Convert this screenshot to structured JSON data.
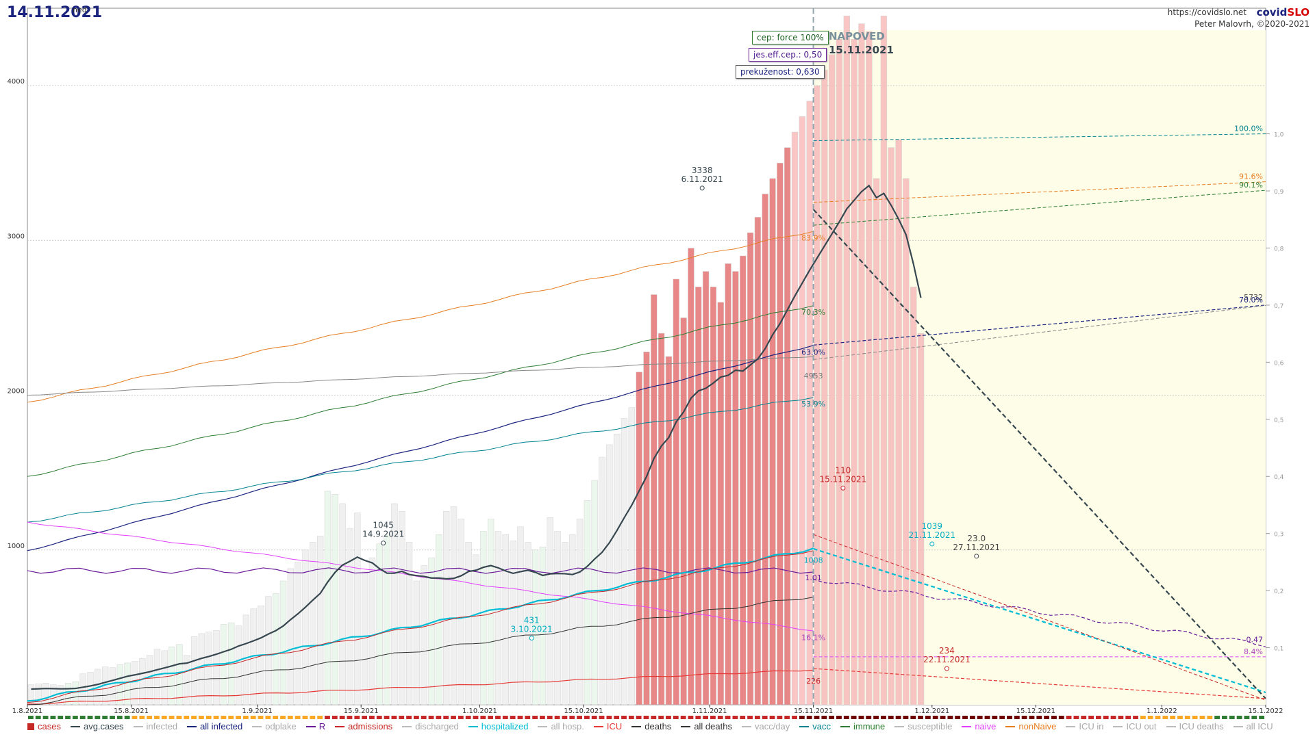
{
  "header": {
    "date": "14.11.2021",
    "day": "ned",
    "url": "https://covidslo.net",
    "brand_a": "covid",
    "brand_b": "SLO",
    "copyright": "Peter Malovrh, ©2020-2021"
  },
  "params": {
    "force": "cep: force 100%",
    "eff": "jes.eff.cep.: 0,50",
    "preku": "prekuženost: 0,630"
  },
  "forecast": {
    "label": "NAPOVED",
    "date": "15.11.2021"
  },
  "chart_data": {
    "type": "bar",
    "x_start": "1.8.2021",
    "x_end": "15.1.2022",
    "forecast_start": "15.11.2021",
    "ylim": [
      0,
      4500
    ],
    "y2lim": [
      0,
      1.0
    ],
    "y_ticks": [
      "1000",
      "2000",
      "3000",
      "4000"
    ],
    "y2_ticks": [
      "0,1",
      "0,2",
      "0,3",
      "0,4",
      "0,5",
      "0,6",
      "0,7",
      "0,8",
      "0,9",
      "1,0"
    ],
    "x_ticks": [
      "1.8.2021",
      "15.8.2021",
      "1.9.2021",
      "15.9.2021",
      "1.10.2021",
      "15.10.2021",
      "1.11.2021",
      "15.11.2021",
      "1.12.2021",
      "15.12.2021",
      "1.1.2022",
      "15.1.2022"
    ],
    "cases": [
      130,
      135,
      140,
      130,
      125,
      140,
      150,
      200,
      210,
      230,
      245,
      240,
      260,
      270,
      280,
      300,
      320,
      360,
      350,
      375,
      390,
      320,
      440,
      460,
      470,
      480,
      520,
      530,
      510,
      580,
      620,
      640,
      700,
      720,
      800,
      880,
      920,
      1000,
      1050,
      1090,
      1380,
      1360,
      1300,
      1140,
      1240,
      860,
      950,
      1040,
      1100,
      1300,
      1250,
      1050,
      800,
      900,
      950,
      1100,
      1250,
      1280,
      1200,
      1050,
      970,
      1120,
      1200,
      1120,
      1100,
      1060,
      1150,
      1050,
      1000,
      1020,
      1210,
      1120,
      1050,
      1100,
      1200,
      1320,
      1450,
      1600,
      1680,
      1750,
      1850,
      1920,
      2150,
      2280,
      2650,
      2400,
      2250,
      2750,
      2500,
      2950,
      2700,
      2800,
      2700,
      2600,
      2850,
      2800,
      2900,
      3050,
      3150,
      3300,
      3400,
      3500,
      3600,
      3700,
      3800,
      3900,
      4000,
      4100,
      4200,
      4300,
      4450,
      4300,
      4400,
      4350,
      3400,
      4450,
      3600,
      3650,
      3400,
      2700,
      2400
    ],
    "cases_pred": [],
    "annotations": [
      {
        "label": "3338",
        "sub": "6.11.2021",
        "color": "#37474f"
      },
      {
        "label": "1045",
        "sub": "14.9.2021",
        "color": "#37474f"
      },
      {
        "label": "431",
        "sub": "3.10.2021",
        "color": "#00acc1"
      },
      {
        "label": "1039",
        "sub": "21.11.2021",
        "color": "#00acc1"
      },
      {
        "label": "23.0",
        "sub": "27.11.2021",
        "color": "#444"
      },
      {
        "label": "110",
        "sub": "15.11.2021",
        "color": "#c62828"
      },
      {
        "label": "234",
        "sub": "22.11.2021",
        "color": "#c62828"
      }
    ],
    "end_labels": [
      {
        "label": "100.0%",
        "color": "#00838f"
      },
      {
        "label": "91.6%",
        "color": "#e67e22"
      },
      {
        "label": "90.1%",
        "color": "#2e7d32"
      },
      {
        "label": "5732",
        "color": "#555"
      },
      {
        "label": "70.0%",
        "color": "#1a237e"
      },
      {
        "label": "0.47",
        "color": "#6a1b9a"
      },
      {
        "label": "8.4%",
        "color": "#ab47bc"
      }
    ],
    "mid_labels": [
      {
        "label": "83.9%",
        "color": "#e67e22"
      },
      {
        "label": "70.3%",
        "color": "#2e7d32"
      },
      {
        "label": "63.0%",
        "color": "#1a237e"
      },
      {
        "label": "4953",
        "color": "#777"
      },
      {
        "label": "53.9%",
        "color": "#00838f"
      },
      {
        "label": "1.01",
        "color": "#6a1b9a"
      },
      {
        "label": "1008",
        "color": "#00acc1"
      },
      {
        "label": "16.1%",
        "color": "#ab47bc"
      },
      {
        "label": "226",
        "color": "#c62828"
      }
    ]
  },
  "legend": [
    {
      "label": "cases",
      "color": "#c62828",
      "kind": "bars"
    },
    {
      "label": "avg.cases",
      "color": "#37474f"
    },
    {
      "label": "infected",
      "color": "#bbb"
    },
    {
      "label": "all infected",
      "color": "#1a237e"
    },
    {
      "label": "odplake",
      "color": "#bbb"
    },
    {
      "label": "R",
      "color": "#6a1b9a"
    },
    {
      "label": "admissions",
      "color": "#c62828"
    },
    {
      "label": "discharged",
      "color": "#bbb"
    },
    {
      "label": "hospitalized",
      "color": "#00bcd4"
    },
    {
      "label": "all hosp.",
      "color": "#bbb"
    },
    {
      "label": "ICU",
      "color": "#e53935"
    },
    {
      "label": "deaths",
      "color": "#333"
    },
    {
      "label": "all deaths",
      "color": "#333"
    },
    {
      "label": "vacc/day",
      "color": "#bbb"
    },
    {
      "label": "vacc",
      "color": "#00838f"
    },
    {
      "label": "immune",
      "color": "#2e7d32"
    },
    {
      "label": "susceptible",
      "color": "#bbb"
    },
    {
      "label": "naive",
      "color": "#e040fb"
    },
    {
      "label": "nonNaive",
      "color": "#e67e22"
    },
    {
      "label": "ICU in",
      "color": "#bbb"
    },
    {
      "label": "ICU out",
      "color": "#bbb"
    },
    {
      "label": "ICU deaths",
      "color": "#bbb"
    },
    {
      "label": "all ICU",
      "color": "#bbb"
    }
  ]
}
